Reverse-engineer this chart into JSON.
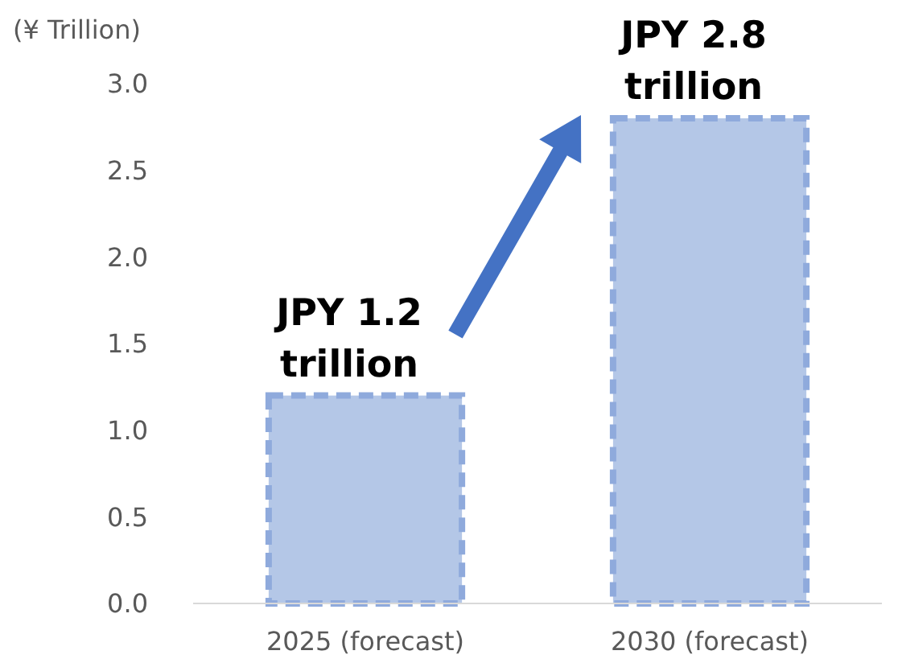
{
  "chart_data": {
    "type": "bar",
    "ylabel": "(¥ Trillion)",
    "categories": [
      "2025 (forecast)",
      "2030 (forecast)"
    ],
    "values": [
      1.2,
      2.8
    ],
    "color": "#b4c7e7",
    "value_labels": [
      "JPY 1.2 trillion",
      "JPY 2.8 trillion"
    ],
    "ylim": [
      0,
      3
    ],
    "yticks": [
      {
        "value": 0,
        "label": "0.0"
      },
      {
        "value": 0.5,
        "label": "0.5"
      },
      {
        "value": 1,
        "label": "1.0"
      },
      {
        "value": 1.5,
        "label": "1.5"
      },
      {
        "value": 2,
        "label": "2.0"
      },
      {
        "value": 2.5,
        "label": "2.5"
      },
      {
        "value": 3,
        "label": "3.0"
      }
    ],
    "grid": false
  }
}
